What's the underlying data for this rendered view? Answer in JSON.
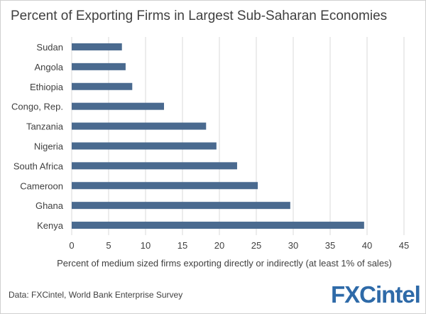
{
  "chart_data": {
    "type": "bar",
    "orientation": "horizontal",
    "title": "Percent of Exporting Firms in Largest Sub-Saharan Economies",
    "xlabel": "Percent of medium sized firms exporting directly or indirectly (at least 1% of sales)",
    "ylabel": "",
    "categories": [
      "Sudan",
      "Angola",
      "Ethiopia",
      "Congo, Rep.",
      "Tanzania",
      "Nigeria",
      "South Africa",
      "Cameroon",
      "Ghana",
      "Kenya"
    ],
    "values": [
      6.8,
      7.3,
      8.2,
      12.5,
      18.2,
      19.6,
      22.4,
      25.2,
      29.6,
      39.6
    ],
    "xlim": [
      0,
      45
    ],
    "xticks": [
      "0",
      "5",
      "10",
      "15",
      "20",
      "25",
      "30",
      "35",
      "40",
      "45"
    ],
    "grid": true,
    "bar_color": "#4a6a8f"
  },
  "footer": {
    "source": "Data: FXCintel, World Bank Enterprise Survey",
    "logo_text": "FXCintel"
  }
}
